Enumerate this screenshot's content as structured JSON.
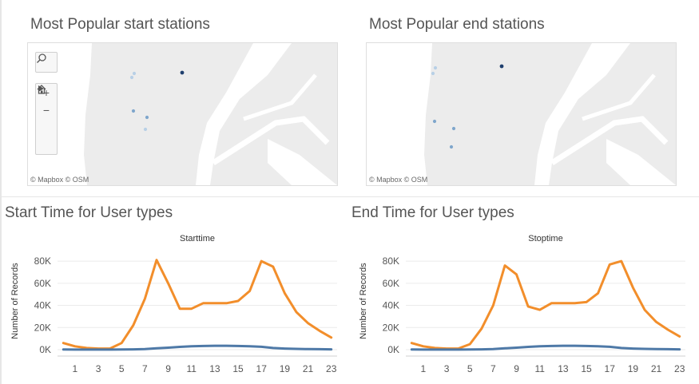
{
  "maps": [
    {
      "title": "Most Popular start stations",
      "attribution": "© Mapbox  © OSM",
      "has_toolbar": true,
      "stations": [
        {
          "shade": "dark"
        },
        {
          "shade": "light"
        },
        {
          "shade": "light"
        },
        {
          "shade": "mid"
        },
        {
          "shade": "mid"
        },
        {
          "shade": "light"
        }
      ]
    },
    {
      "title": "Most Popular end stations",
      "attribution": "© Mapbox  © OSM",
      "has_toolbar": false,
      "stations": [
        {
          "shade": "dark"
        },
        {
          "shade": "light"
        },
        {
          "shade": "light"
        },
        {
          "shade": "mid"
        },
        {
          "shade": "mid"
        },
        {
          "shade": "mid"
        }
      ]
    }
  ],
  "map_toolbar": {
    "search_icon": "search-icon",
    "zoom_in": "+",
    "zoom_out": "−",
    "home_icon": "home-icon",
    "play_icon": "play-icon"
  },
  "colors": {
    "subscriber": "#f28e2b",
    "customer": "#4e79a7",
    "station_dark": "#1f3f6e",
    "station_mid": "#7fa6cc",
    "station_light": "#b8d0e6",
    "water": "#ffffff",
    "land": "#ececec"
  },
  "chart_data": [
    {
      "type": "line",
      "panel_title": "Start Time for User types",
      "title": "Starttime",
      "ylabel": "Number of Records",
      "xlabel": "",
      "x": [
        0,
        1,
        2,
        3,
        4,
        5,
        6,
        7,
        8,
        9,
        10,
        11,
        12,
        13,
        14,
        15,
        16,
        17,
        18,
        19,
        20,
        21,
        22,
        23
      ],
      "xticks": [
        "1",
        "3",
        "5",
        "7",
        "9",
        "11",
        "13",
        "15",
        "17",
        "19",
        "21",
        "23"
      ],
      "yticks": [
        "0K",
        "20K",
        "40K",
        "60K",
        "80K"
      ],
      "ylim": [
        0,
        88000
      ],
      "series": [
        {
          "color": "#f28e2b",
          "values": [
            6000,
            3000,
            1500,
            1000,
            1000,
            6000,
            22000,
            46000,
            81000,
            60000,
            37000,
            37000,
            42000,
            42000,
            42000,
            44000,
            53000,
            80000,
            75000,
            51000,
            34000,
            24000,
            17000,
            11000
          ]
        },
        {
          "color": "#4e79a7",
          "values": [
            200,
            100,
            80,
            60,
            80,
            150,
            300,
            600,
            1200,
            1800,
            2500,
            3000,
            3300,
            3500,
            3500,
            3300,
            3000,
            2600,
            1500,
            1000,
            700,
            500,
            400,
            300
          ]
        }
      ]
    },
    {
      "type": "line",
      "panel_title": "End Time for User types",
      "title": "Stoptime",
      "ylabel": "Number of Records",
      "xlabel": "",
      "x": [
        0,
        1,
        2,
        3,
        4,
        5,
        6,
        7,
        8,
        9,
        10,
        11,
        12,
        13,
        14,
        15,
        16,
        17,
        18,
        19,
        20,
        21,
        22,
        23
      ],
      "xticks": [
        "1",
        "3",
        "5",
        "7",
        "9",
        "11",
        "13",
        "15",
        "17",
        "19",
        "21",
        "23"
      ],
      "yticks": [
        "0K",
        "20K",
        "40K",
        "60K",
        "80K"
      ],
      "ylim": [
        0,
        88000
      ],
      "series": [
        {
          "color": "#f28e2b",
          "values": [
            6000,
            3000,
            1500,
            1000,
            1000,
            5000,
            19000,
            40000,
            76000,
            68000,
            39000,
            36000,
            42000,
            42000,
            42000,
            43000,
            51000,
            77000,
            80000,
            56000,
            36000,
            25000,
            18000,
            12000
          ]
        },
        {
          "color": "#4e79a7",
          "values": [
            200,
            100,
            80,
            60,
            80,
            150,
            300,
            600,
            1200,
            1800,
            2500,
            3000,
            3300,
            3500,
            3500,
            3300,
            3000,
            2600,
            1500,
            1000,
            700,
            500,
            400,
            300
          ]
        }
      ]
    }
  ]
}
